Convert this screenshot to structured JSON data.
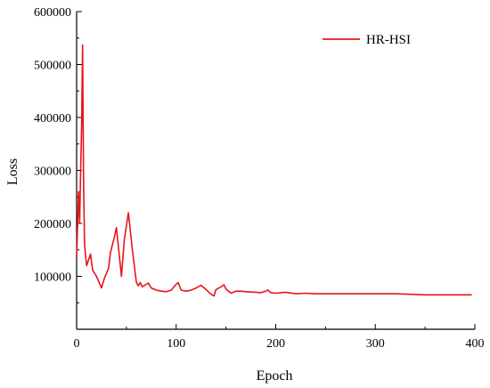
{
  "chart_data": {
    "type": "line",
    "title": "",
    "xlabel": "Epoch",
    "ylabel": "Loss",
    "xlim": [
      0,
      400
    ],
    "ylim": [
      0,
      600000
    ],
    "x_ticks": [
      0,
      100,
      200,
      300,
      400
    ],
    "y_ticks": [
      100000,
      200000,
      300000,
      400000,
      500000,
      600000
    ],
    "x_tick_labels": [
      "0",
      "100",
      "200",
      "300",
      "400"
    ],
    "y_tick_labels": [
      "100000",
      "200000",
      "300000",
      "400000",
      "500000",
      "600000"
    ],
    "grid": false,
    "legend_position": "top-right",
    "series": [
      {
        "name": "HR-HSI",
        "color": "#e8141c",
        "x": [
          0,
          2,
          3,
          4,
          5,
          6,
          7,
          8,
          10,
          14,
          16,
          20,
          25,
          28,
          32,
          34,
          38,
          40,
          45,
          48,
          52,
          56,
          60,
          62,
          64,
          66,
          70,
          72,
          75,
          80,
          85,
          90,
          95,
          100,
          102,
          105,
          110,
          115,
          120,
          125,
          130,
          135,
          138,
          140,
          145,
          148,
          150,
          155,
          160,
          165,
          170,
          180,
          185,
          190,
          192,
          195,
          200,
          210,
          220,
          230,
          240,
          250,
          260,
          280,
          300,
          320,
          350,
          370,
          397
        ],
        "y": [
          135000,
          260000,
          200000,
          300000,
          380000,
          537000,
          280000,
          160000,
          120000,
          142000,
          112000,
          100000,
          78000,
          97000,
          115000,
          145000,
          175000,
          192000,
          100000,
          170000,
          220000,
          150000,
          88000,
          82000,
          88000,
          80000,
          85000,
          87000,
          78000,
          74000,
          72000,
          71000,
          74000,
          85000,
          88000,
          74000,
          72000,
          74000,
          78000,
          83000,
          75000,
          66000,
          63000,
          75000,
          80000,
          84000,
          76000,
          68000,
          72000,
          72000,
          71000,
          70000,
          69000,
          72000,
          74000,
          69000,
          68000,
          70000,
          67000,
          68000,
          67000,
          67000,
          67000,
          67000,
          67000,
          67000,
          65000,
          65000,
          65000
        ]
      }
    ]
  }
}
